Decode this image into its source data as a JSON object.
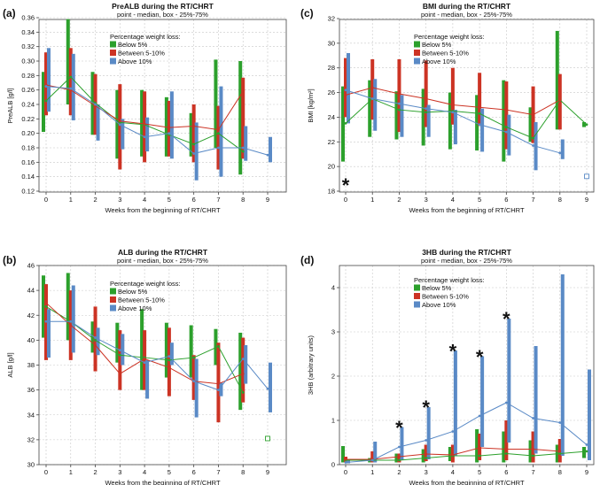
{
  "chart_data": [
    {
      "type": "box",
      "panel_label": "(a)",
      "title": "PreALB during the RT/CHRT",
      "subtitle": "point - median, box - 25%-75%",
      "xlabel": "Weeks from the beginning of RT/CHRT",
      "ylabel": "PreALB [g/l]",
      "x": [
        0,
        1,
        2,
        3,
        4,
        5,
        6,
        7,
        8,
        9
      ],
      "xticks": [
        "0",
        "1",
        "2",
        "3",
        "4",
        "5",
        "6",
        "7",
        "8",
        "9"
      ],
      "ylim": [
        0.12,
        0.36
      ],
      "yticks": [
        "0.12",
        "0.14",
        "0.16",
        "0.18",
        "0.20",
        "0.22",
        "0.24",
        "0.26",
        "0.28",
        "0.30",
        "0.32",
        "0.34",
        "0.36"
      ],
      "legend_title": "Percentage weight loss:",
      "legend_position": "top-right",
      "stars": [],
      "series": [
        {
          "name": "Below 5%",
          "color": "#2ca02c",
          "median": [
            0.245,
            0.278,
            0.242,
            0.215,
            0.212,
            0.198,
            0.185,
            0.2,
            0.175,
            null
          ],
          "q1": [
            0.202,
            0.24,
            0.198,
            0.165,
            0.168,
            0.168,
            0.168,
            0.18,
            0.143,
            null
          ],
          "q3": [
            0.285,
            0.358,
            0.285,
            0.26,
            0.26,
            0.25,
            0.228,
            0.302,
            0.3,
            null
          ]
        },
        {
          "name": "Between 5-10%",
          "color": "#cc3324",
          "median": [
            0.267,
            0.26,
            0.238,
            0.217,
            0.213,
            0.208,
            0.21,
            0.205,
            0.258,
            null
          ],
          "q1": [
            0.225,
            0.225,
            0.198,
            0.15,
            0.16,
            0.168,
            0.16,
            0.15,
            0.165,
            null
          ],
          "q3": [
            0.312,
            0.318,
            0.282,
            0.268,
            0.258,
            0.245,
            0.24,
            0.238,
            0.277,
            null
          ]
        },
        {
          "name": "Above 10%",
          "color": "#5a8ac6",
          "median": [
            0.265,
            0.262,
            0.24,
            0.212,
            0.195,
            0.2,
            0.172,
            0.18,
            0.18,
            0.17
          ],
          "q1": [
            0.23,
            0.218,
            0.19,
            0.178,
            0.175,
            0.165,
            0.135,
            0.14,
            0.162,
            0.16
          ],
          "q3": [
            0.318,
            0.31,
            0.24,
            0.22,
            0.222,
            0.258,
            0.215,
            0.265,
            0.21,
            0.195
          ]
        }
      ],
      "single_points": []
    },
    {
      "type": "box",
      "panel_label": "(c)",
      "title": "BMI during the RT/CHRT",
      "subtitle": "point - median, box - 25%-75%",
      "xlabel": "Weeks from the beginning of RT/CHRT",
      "ylabel": "BMI [kg/m²]",
      "x": [
        0,
        1,
        2,
        3,
        4,
        5,
        6,
        7,
        8,
        9
      ],
      "xticks": [
        "0",
        "1",
        "2",
        "3",
        "4",
        "5",
        "6",
        "7",
        "8",
        "9"
      ],
      "ylim": [
        18,
        32
      ],
      "yticks": [
        "18",
        "20",
        "22",
        "24",
        "26",
        "28",
        "30",
        "32"
      ],
      "legend_title": "Percentage weight loss:",
      "legend_position": "top-right",
      "stars": [
        {
          "x": 0,
          "y": 18.8,
          "text": "*"
        }
      ],
      "series": [
        {
          "name": "Below 5%",
          "color": "#2ca02c",
          "median": [
            23.5,
            25.5,
            24.6,
            24.4,
            24.5,
            24.3,
            23.2,
            22.3,
            25.4,
            23.4
          ],
          "q1": [
            20.4,
            22.4,
            22.2,
            21.7,
            21.4,
            21.3,
            20.4,
            22.0,
            23.0,
            23.2
          ],
          "q3": [
            26.5,
            27.0,
            26.1,
            26.3,
            26.0,
            25.8,
            27.0,
            24.8,
            31.0,
            23.6
          ]
        },
        {
          "name": "Between 5-10%",
          "color": "#cc3324",
          "median": [
            25.8,
            26.4,
            25.9,
            25.5,
            25.0,
            24.8,
            24.6,
            24.2,
            25.4,
            null
          ],
          "q1": [
            24.0,
            23.8,
            22.8,
            23.2,
            23.4,
            23.3,
            21.4,
            21.9,
            23.0,
            null
          ],
          "q3": [
            28.8,
            28.7,
            28.7,
            28.6,
            28.0,
            27.6,
            26.9,
            26.5,
            27.5,
            null
          ]
        },
        {
          "name": "Above 10%",
          "color": "#5a8ac6",
          "median": [
            26.2,
            25.5,
            25.1,
            24.7,
            24.4,
            23.4,
            22.8,
            21.7,
            21.1,
            null
          ],
          "q1": [
            23.5,
            22.9,
            22.4,
            22.4,
            21.8,
            21.2,
            20.9,
            19.7,
            20.6,
            null
          ],
          "q3": [
            29.2,
            27.1,
            25.8,
            25.0,
            24.6,
            24.7,
            24.2,
            23.6,
            22.2,
            null
          ]
        }
      ],
      "single_points": [
        {
          "x": 9,
          "y": 19.2,
          "color": "#5a8ac6"
        }
      ]
    },
    {
      "type": "box",
      "panel_label": "(b)",
      "title": "ALB during the RT/CHRT",
      "subtitle": "point - median, box - 25%-75%",
      "xlabel": "Weeks from the beginning of RT/CHRT",
      "ylabel": "ALB [g/l]",
      "x": [
        0,
        1,
        2,
        3,
        4,
        5,
        6,
        7,
        8,
        9
      ],
      "xticks": [
        "0",
        "1",
        "2",
        "3",
        "4",
        "5",
        "6",
        "7",
        "8",
        "9"
      ],
      "ylim": [
        30,
        46
      ],
      "yticks": [
        "30",
        "32",
        "34",
        "36",
        "38",
        "40",
        "42",
        "44",
        "46"
      ],
      "legend_title": "Percentage weight loss:",
      "legend_position": "top-right",
      "stars": [],
      "series": [
        {
          "name": "Below 5%",
          "color": "#2ca02c",
          "median": [
            42.7,
            41.5,
            40.0,
            38.8,
            38.6,
            38.4,
            38.6,
            39.5,
            35.8,
            null
          ],
          "q1": [
            40.2,
            40.0,
            39.0,
            38.2,
            36.0,
            37.0,
            37.0,
            38.0,
            34.4,
            null
          ],
          "q3": [
            45.2,
            45.4,
            41.5,
            41.4,
            42.5,
            41.4,
            41.2,
            40.9,
            40.6,
            null
          ]
        },
        {
          "name": "Between 5-10%",
          "color": "#cc3324",
          "median": [
            43.0,
            41.2,
            39.6,
            37.3,
            38.5,
            37.8,
            36.7,
            36.5,
            37.3,
            null
          ],
          "q1": [
            38.4,
            38.4,
            37.5,
            36.0,
            36.0,
            35.5,
            35.2,
            33.4,
            35.0,
            null
          ],
          "q3": [
            44.5,
            44.0,
            42.7,
            40.8,
            40.8,
            41.0,
            38.8,
            39.8,
            40.2,
            null
          ]
        },
        {
          "name": "Above 10%",
          "color": "#5a8ac6",
          "median": [
            41.5,
            41.5,
            40.2,
            39.2,
            38.2,
            38.7,
            36.7,
            36.0,
            38.5,
            36.1
          ],
          "q1": [
            38.6,
            39.0,
            38.8,
            38.0,
            35.3,
            38.0,
            33.8,
            35.5,
            36.5,
            34.2
          ],
          "q3": [
            42.5,
            44.4,
            41.0,
            40.5,
            38.4,
            39.8,
            38.5,
            36.6,
            39.6,
            38.2
          ]
        }
      ],
      "single_points": [
        {
          "x": 9,
          "y": 32.1,
          "color": "#2ca02c"
        }
      ]
    },
    {
      "type": "box",
      "panel_label": "(d)",
      "title": "3HB during the RT/CHRT",
      "subtitle": "point - median, box - 25%-75%",
      "xlabel": "Weeks from the beginning of RT/CHRT",
      "ylabel": "3HB (arbitrary units)",
      "x": [
        0,
        1,
        2,
        3,
        4,
        5,
        6,
        7,
        8,
        9
      ],
      "xticks": [
        "0",
        "1",
        "2",
        "3",
        "4",
        "5",
        "6",
        "7",
        "8",
        "9"
      ],
      "ylim": [
        0,
        4.5
      ],
      "yticks": [
        "0",
        "1",
        "2",
        "3",
        "4"
      ],
      "legend_title": "Percentage weight loss:",
      "legend_position": "top-left",
      "stars": [
        {
          "x": 2,
          "y": 0.92,
          "text": "*"
        },
        {
          "x": 3,
          "y": 1.38,
          "text": "*"
        },
        {
          "x": 4,
          "y": 2.65,
          "text": "*"
        },
        {
          "x": 5,
          "y": 2.52,
          "text": "*"
        },
        {
          "x": 6,
          "y": 3.38,
          "text": "*"
        }
      ],
      "series": [
        {
          "name": "Below 5%",
          "color": "#2ca02c",
          "median": [
            0.1,
            0.1,
            0.1,
            0.15,
            0.2,
            0.2,
            0.25,
            0.2,
            0.25,
            0.3
          ],
          "q1": [
            0.05,
            0.05,
            0.05,
            0.05,
            0.08,
            0.05,
            0.05,
            0.05,
            0.05,
            0.15
          ],
          "q3": [
            0.42,
            0.15,
            0.25,
            0.35,
            0.4,
            0.8,
            0.75,
            0.55,
            0.45,
            0.4
          ]
        },
        {
          "name": "Between 5-10%",
          "color": "#cc3324",
          "median": [
            0.12,
            0.12,
            0.18,
            0.24,
            0.22,
            0.38,
            0.35,
            0.35,
            0.3,
            null
          ],
          "q1": [
            0.05,
            0.05,
            0.05,
            0.08,
            0.05,
            0.1,
            0.1,
            0.05,
            0.05,
            null
          ],
          "q3": [
            0.18,
            0.3,
            0.25,
            0.45,
            0.45,
            0.7,
            1.0,
            0.75,
            0.58,
            null
          ]
        },
        {
          "name": "Above 10%",
          "color": "#5a8ac6",
          "median": [
            0.05,
            0.1,
            0.4,
            0.55,
            0.75,
            1.1,
            1.4,
            1.05,
            0.95,
            0.45
          ],
          "q1": [
            0.03,
            0.05,
            0.1,
            0.12,
            0.2,
            0.4,
            0.5,
            0.25,
            0.2,
            0.1
          ],
          "q3": [
            0.12,
            0.52,
            0.85,
            1.3,
            2.58,
            2.45,
            3.3,
            2.68,
            4.3,
            2.15
          ]
        }
      ],
      "single_points": []
    }
  ]
}
